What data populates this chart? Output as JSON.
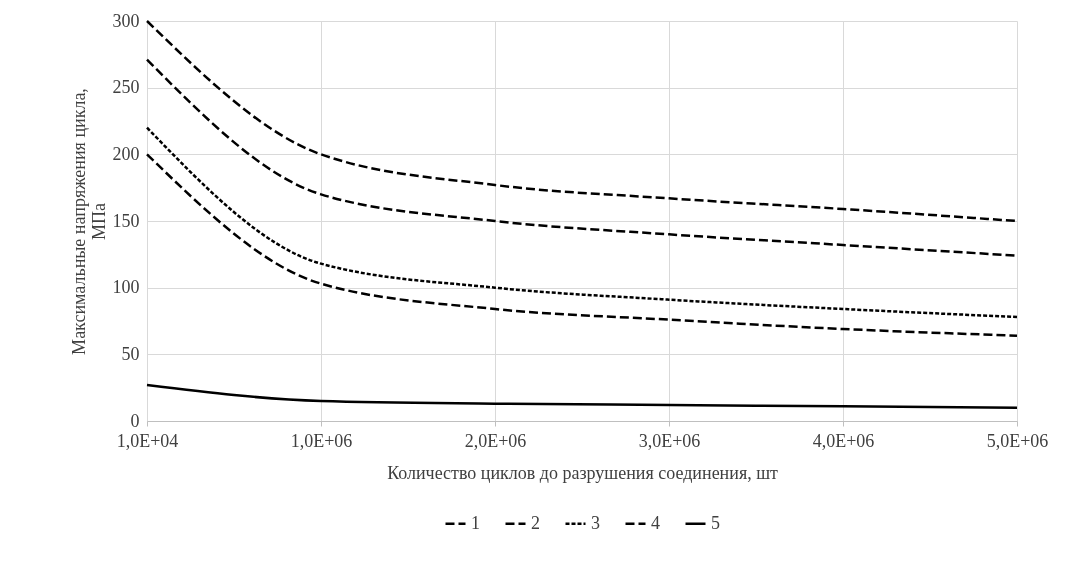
{
  "chart_data": {
    "type": "line",
    "xlabel": "Количество циклов до разрушения соединения, шт",
    "ylabel": "Максимальные напряжения цикла, МПа",
    "categories": [
      "1,0E+04",
      "1,0E+06",
      "2,0E+06",
      "3,0E+06",
      "4,0E+06",
      "5,0E+06"
    ],
    "ylim": [
      0,
      300
    ],
    "yticks": [
      0,
      50,
      100,
      150,
      200,
      250,
      300
    ],
    "grid": true,
    "legend": "bottom",
    "marker": "none",
    "series": [
      {
        "name": "1",
        "color": "#000000",
        "line_style": "dashed",
        "values": [
          300,
          200,
          177,
          167,
          159,
          150
        ]
      },
      {
        "name": "2",
        "color": "#000000",
        "line_style": "dashed",
        "values": [
          271,
          170,
          150,
          140,
          132,
          124
        ]
      },
      {
        "name": "3",
        "color": "#000000",
        "line_style": "dotted",
        "values": [
          220,
          118,
          100,
          91,
          84,
          78
        ]
      },
      {
        "name": "4",
        "color": "#000000",
        "line_style": "dashed",
        "values": [
          200,
          103,
          84,
          76,
          69,
          64
        ]
      },
      {
        "name": "5",
        "color": "#000000",
        "line_style": "solid",
        "values": [
          27,
          15,
          13,
          12,
          11,
          10
        ]
      }
    ]
  }
}
